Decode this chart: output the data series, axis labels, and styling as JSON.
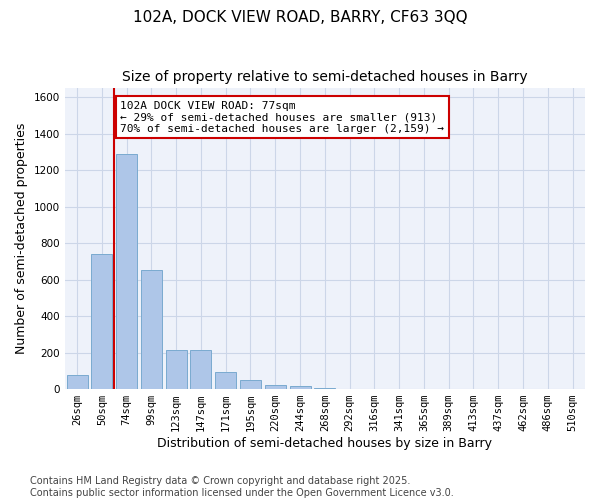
{
  "title_line1": "102A, DOCK VIEW ROAD, BARRY, CF63 3QQ",
  "title_line2": "Size of property relative to semi-detached houses in Barry",
  "xlabel": "Distribution of semi-detached houses by size in Barry",
  "ylabel": "Number of semi-detached properties",
  "footer_line1": "Contains HM Land Registry data © Crown copyright and database right 2025.",
  "footer_line2": "Contains public sector information licensed under the Open Government Licence v3.0.",
  "annotation_line1": "102A DOCK VIEW ROAD: 77sqm",
  "annotation_line2": "← 29% of semi-detached houses are smaller (913)",
  "annotation_line3": "70% of semi-detached houses are larger (2,159) →",
  "bins": [
    "26sqm",
    "50sqm",
    "74sqm",
    "99sqm",
    "123sqm",
    "147sqm",
    "171sqm",
    "195sqm",
    "220sqm",
    "244sqm",
    "268sqm",
    "292sqm",
    "316sqm",
    "341sqm",
    "365sqm",
    "389sqm",
    "413sqm",
    "437sqm",
    "462sqm",
    "486sqm",
    "510sqm"
  ],
  "bar_values": [
    75,
    740,
    1290,
    650,
    215,
    215,
    95,
    50,
    25,
    15,
    5,
    2,
    1,
    0,
    0,
    0,
    0,
    0,
    0,
    0,
    0
  ],
  "bar_color": "#aec6e8",
  "bar_edge_color": "#7aaad0",
  "ylim": [
    0,
    1650
  ],
  "yticks": [
    0,
    200,
    400,
    600,
    800,
    1000,
    1200,
    1400,
    1600
  ],
  "grid_color": "#ccd6e8",
  "bg_color": "#eef2fa",
  "marker_color": "#cc0000",
  "annotation_box_color": "#cc0000",
  "title_fontsize": 11,
  "subtitle_fontsize": 10,
  "axis_label_fontsize": 9,
  "tick_fontsize": 7.5,
  "annotation_fontsize": 8,
  "footer_fontsize": 7
}
